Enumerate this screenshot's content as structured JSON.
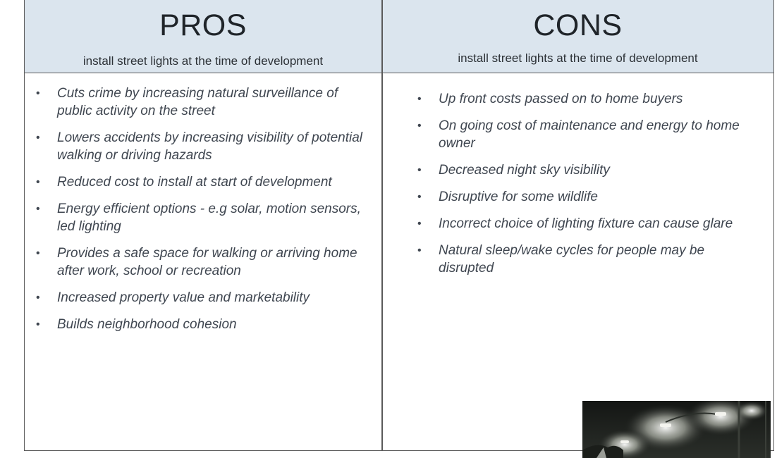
{
  "pros": {
    "title": "PROS",
    "subtitle": "install street lights at the time of development",
    "items": [
      "Cuts crime by increasing natural surveillance of public activity on the street",
      "Lowers accidents by increasing visibility of potential walking or driving hazards",
      "Reduced cost to install at start of development",
      "Energy efficient options - e.g solar, motion sensors, led lighting",
      "Provides a safe space for walking or arriving home after work, school or recreation",
      "Increased property value and marketability",
      "Builds neighborhood cohesion"
    ]
  },
  "cons": {
    "title": "CONS",
    "subtitle": "install street lights at the time of development",
    "items": [
      "Up front costs passed on to home buyers",
      "On going cost of maintenance and energy to home owner",
      "Decreased night sky visibility",
      "Disruptive for some wildlife",
      "Incorrect choice of lighting fixture can cause glare",
      "Natural sleep/wake cycles for people may be disrupted"
    ]
  },
  "colors": {
    "header_bg": "#dbe5ee",
    "text": "#3f4650",
    "border": "#5a5a5a"
  },
  "image": {
    "icon": "street-lights-night-photo"
  }
}
